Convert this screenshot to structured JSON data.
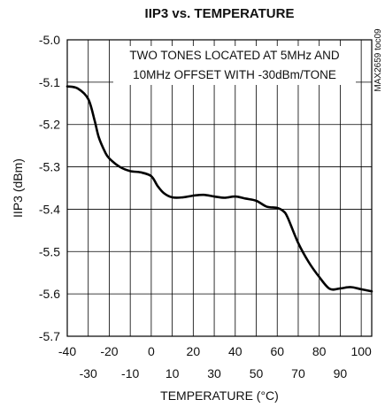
{
  "chart_data": {
    "type": "line",
    "title": "IIP3 vs. TEMPERATURE",
    "xlabel": "TEMPERATURE (°C)",
    "ylabel": "IIP3 (dBm)",
    "xlim": [
      -40,
      105
    ],
    "ylim": [
      -5.7,
      -5.0
    ],
    "x_ticks": [
      -40,
      -30,
      -20,
      -10,
      0,
      10,
      20,
      30,
      40,
      50,
      60,
      70,
      80,
      90,
      100
    ],
    "y_ticks": [
      -5.0,
      -5.1,
      -5.2,
      -5.3,
      -5.4,
      -5.5,
      -5.6,
      -5.7
    ],
    "y_tick_labels": [
      "-5.0",
      "-5.1",
      "-5.2",
      "-5.3",
      "-5.4",
      "-5.5",
      "-5.6",
      "-5.7"
    ],
    "grid": true,
    "annotation_lines": [
      "TWO TONES LOCATED AT 5MHz AND",
      "10MHz OFFSET WITH -30dBm/TONE"
    ],
    "side_code": "MAX2659 toc09",
    "series": [
      {
        "color": "#000000",
        "x": [
          -40,
          -35,
          -30,
          -27,
          -25,
          -22,
          -20,
          -15,
          -10,
          -5,
          0,
          3,
          6,
          10,
          15,
          20,
          25,
          30,
          35,
          40,
          45,
          50,
          55,
          60,
          63,
          65,
          70,
          75,
          80,
          85,
          90,
          95,
          100,
          105
        ],
        "y": [
          -5.11,
          -5.115,
          -5.14,
          -5.19,
          -5.23,
          -5.265,
          -5.28,
          -5.3,
          -5.31,
          -5.313,
          -5.322,
          -5.345,
          -5.362,
          -5.372,
          -5.372,
          -5.368,
          -5.366,
          -5.37,
          -5.373,
          -5.37,
          -5.375,
          -5.38,
          -5.394,
          -5.397,
          -5.405,
          -5.42,
          -5.48,
          -5.525,
          -5.56,
          -5.588,
          -5.587,
          -5.584,
          -5.589,
          -5.594
        ]
      }
    ]
  }
}
